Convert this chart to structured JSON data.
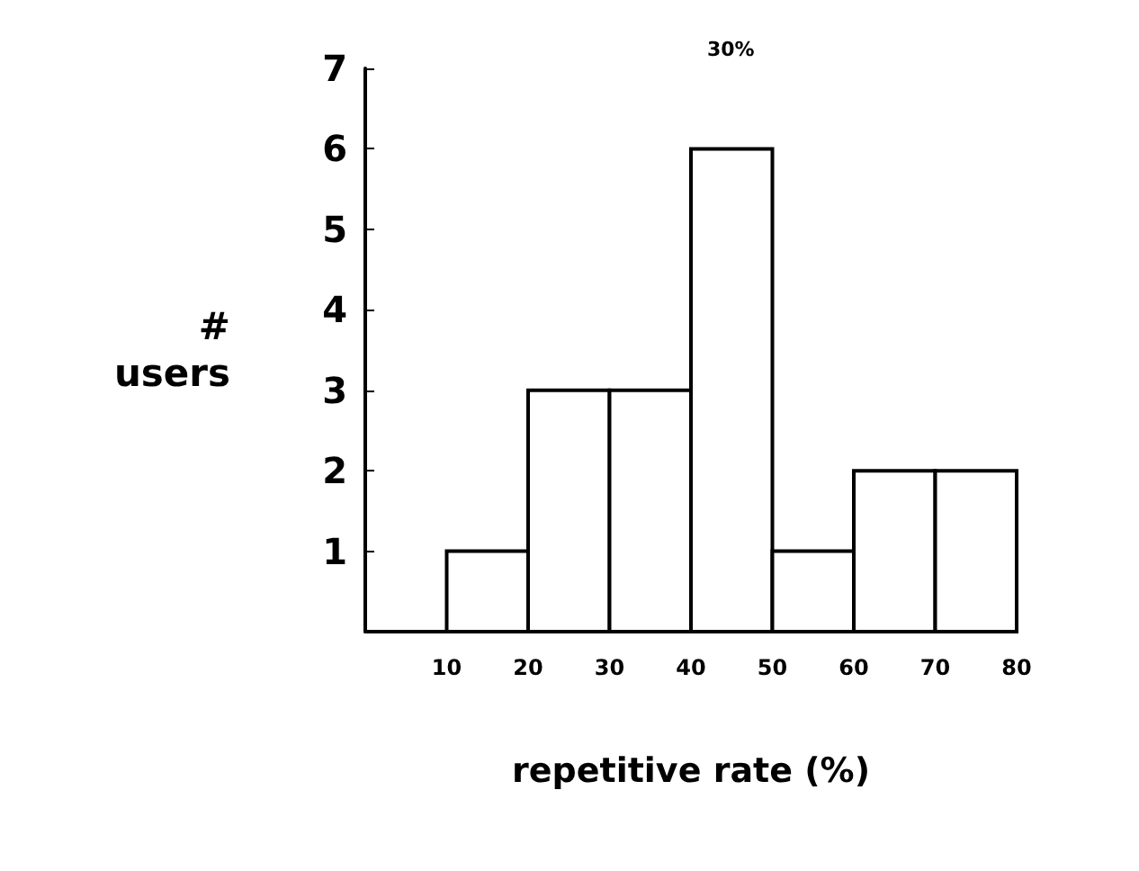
{
  "chart_data": {
    "type": "histogram",
    "xlabel": "repetitive rate (%)",
    "ylabel": "#\nusers",
    "bins": [
      10,
      20,
      30,
      40,
      50,
      60,
      70,
      80
    ],
    "values": [
      1,
      3,
      3,
      6,
      1,
      2,
      2
    ],
    "color": "#ffffff",
    "xlim": [
      0,
      80
    ],
    "xticks": [
      10,
      20,
      30,
      40,
      50,
      60,
      70,
      80
    ],
    "ylim": [
      0,
      7
    ],
    "yticks": [
      1,
      2,
      3,
      4,
      5,
      6,
      7
    ],
    "grid": false,
    "annotations": [
      "30%"
    ]
  }
}
